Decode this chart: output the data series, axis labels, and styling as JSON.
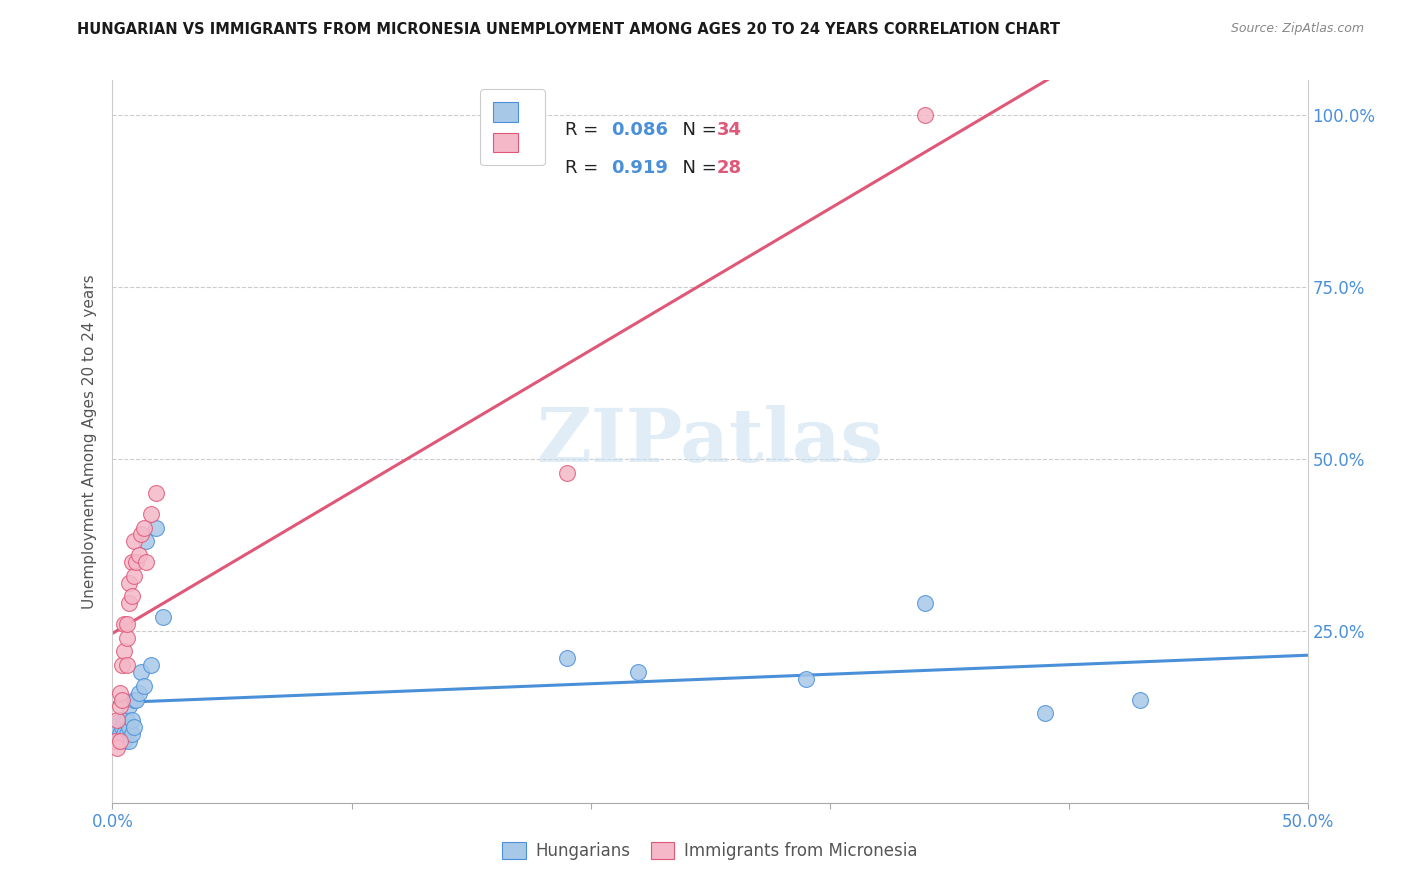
{
  "title": "HUNGARIAN VS IMMIGRANTS FROM MICRONESIA UNEMPLOYMENT AMONG AGES 20 TO 24 YEARS CORRELATION CHART",
  "source": "Source: ZipAtlas.com",
  "ylabel": "Unemployment Among Ages 20 to 24 years",
  "hungarian_R": 0.086,
  "hungarian_N": 34,
  "micronesia_R": 0.919,
  "micronesia_N": 28,
  "watermark": "ZIPatlas",
  "hungarian_color": "#a8c8e8",
  "micronesia_color": "#f4b8c8",
  "hungarian_line_color": "#4a90d9",
  "micronesia_line_color": "#e05878",
  "legend_label_hungarian": "Hungarians",
  "legend_label_micronesia": "Immigrants from Micronesia",
  "hun_x": [
    0.001,
    0.002,
    0.002,
    0.003,
    0.003,
    0.003,
    0.004,
    0.004,
    0.005,
    0.005,
    0.005,
    0.006,
    0.006,
    0.007,
    0.007,
    0.007,
    0.008,
    0.008,
    0.009,
    0.009,
    0.01,
    0.011,
    0.012,
    0.013,
    0.014,
    0.016,
    0.018,
    0.021,
    0.19,
    0.22,
    0.29,
    0.34,
    0.39,
    0.43
  ],
  "hun_y": [
    0.1,
    0.09,
    0.11,
    0.09,
    0.1,
    0.12,
    0.09,
    0.11,
    0.09,
    0.1,
    0.12,
    0.1,
    0.12,
    0.09,
    0.11,
    0.14,
    0.1,
    0.12,
    0.11,
    0.15,
    0.15,
    0.16,
    0.19,
    0.17,
    0.38,
    0.2,
    0.4,
    0.27,
    0.21,
    0.19,
    0.18,
    0.29,
    0.13,
    0.15
  ],
  "mic_x": [
    0.001,
    0.002,
    0.002,
    0.003,
    0.003,
    0.003,
    0.004,
    0.004,
    0.005,
    0.005,
    0.006,
    0.006,
    0.006,
    0.007,
    0.007,
    0.008,
    0.008,
    0.009,
    0.009,
    0.01,
    0.011,
    0.012,
    0.013,
    0.014,
    0.016,
    0.018,
    0.19,
    0.34
  ],
  "mic_y": [
    0.09,
    0.08,
    0.12,
    0.09,
    0.14,
    0.16,
    0.15,
    0.2,
    0.22,
    0.26,
    0.2,
    0.24,
    0.26,
    0.29,
    0.32,
    0.3,
    0.35,
    0.33,
    0.38,
    0.35,
    0.36,
    0.39,
    0.4,
    0.35,
    0.42,
    0.45,
    0.48,
    1.0
  ],
  "xlim": [
    0,
    0.5
  ],
  "ylim": [
    0,
    1.05
  ],
  "xticks": [
    0,
    0.1,
    0.2,
    0.3,
    0.4,
    0.5
  ],
  "yticks": [
    0,
    0.25,
    0.5,
    0.75,
    1.0
  ],
  "ytick_labels": [
    "",
    "25.0%",
    "50.0%",
    "75.0%",
    "100.0%"
  ]
}
